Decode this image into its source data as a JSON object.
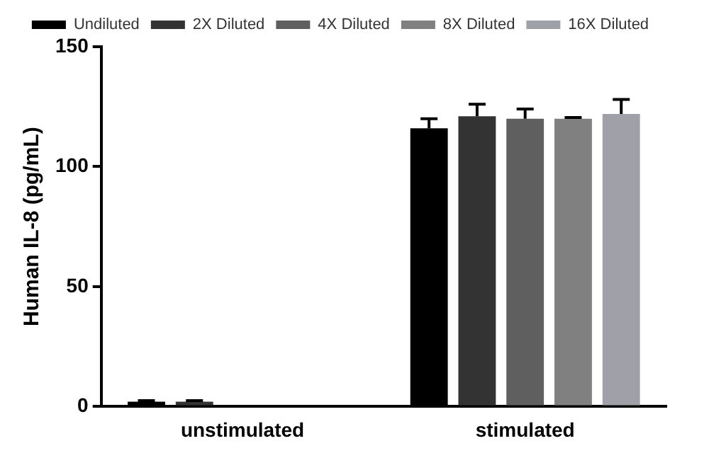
{
  "chart_data": {
    "type": "bar",
    "ylabel": "Human IL-8 (pg/mL)",
    "categories": [
      "unstimulated",
      "stimulated"
    ],
    "series": [
      {
        "name": "Undiluted",
        "color": "#000000",
        "values": [
          2,
          116
        ],
        "errors": [
          0.5,
          4
        ]
      },
      {
        "name": "2X Diluted",
        "color": "#333333",
        "values": [
          2,
          121
        ],
        "errors": [
          0.5,
          5
        ]
      },
      {
        "name": "4X Diluted",
        "color": "#5f5f5f",
        "values": [
          null,
          120
        ],
        "errors": [
          null,
          4
        ]
      },
      {
        "name": "8X Diluted",
        "color": "#808080",
        "values": [
          null,
          120
        ],
        "errors": [
          null,
          0.5
        ]
      },
      {
        "name": "16X Diluted",
        "color": "#a0a0a8",
        "values": [
          null,
          122
        ],
        "errors": [
          null,
          6
        ]
      }
    ],
    "ylim": [
      0,
      150
    ],
    "yticks": [
      0,
      50,
      100,
      150
    ],
    "grid": false,
    "legend": "top"
  }
}
